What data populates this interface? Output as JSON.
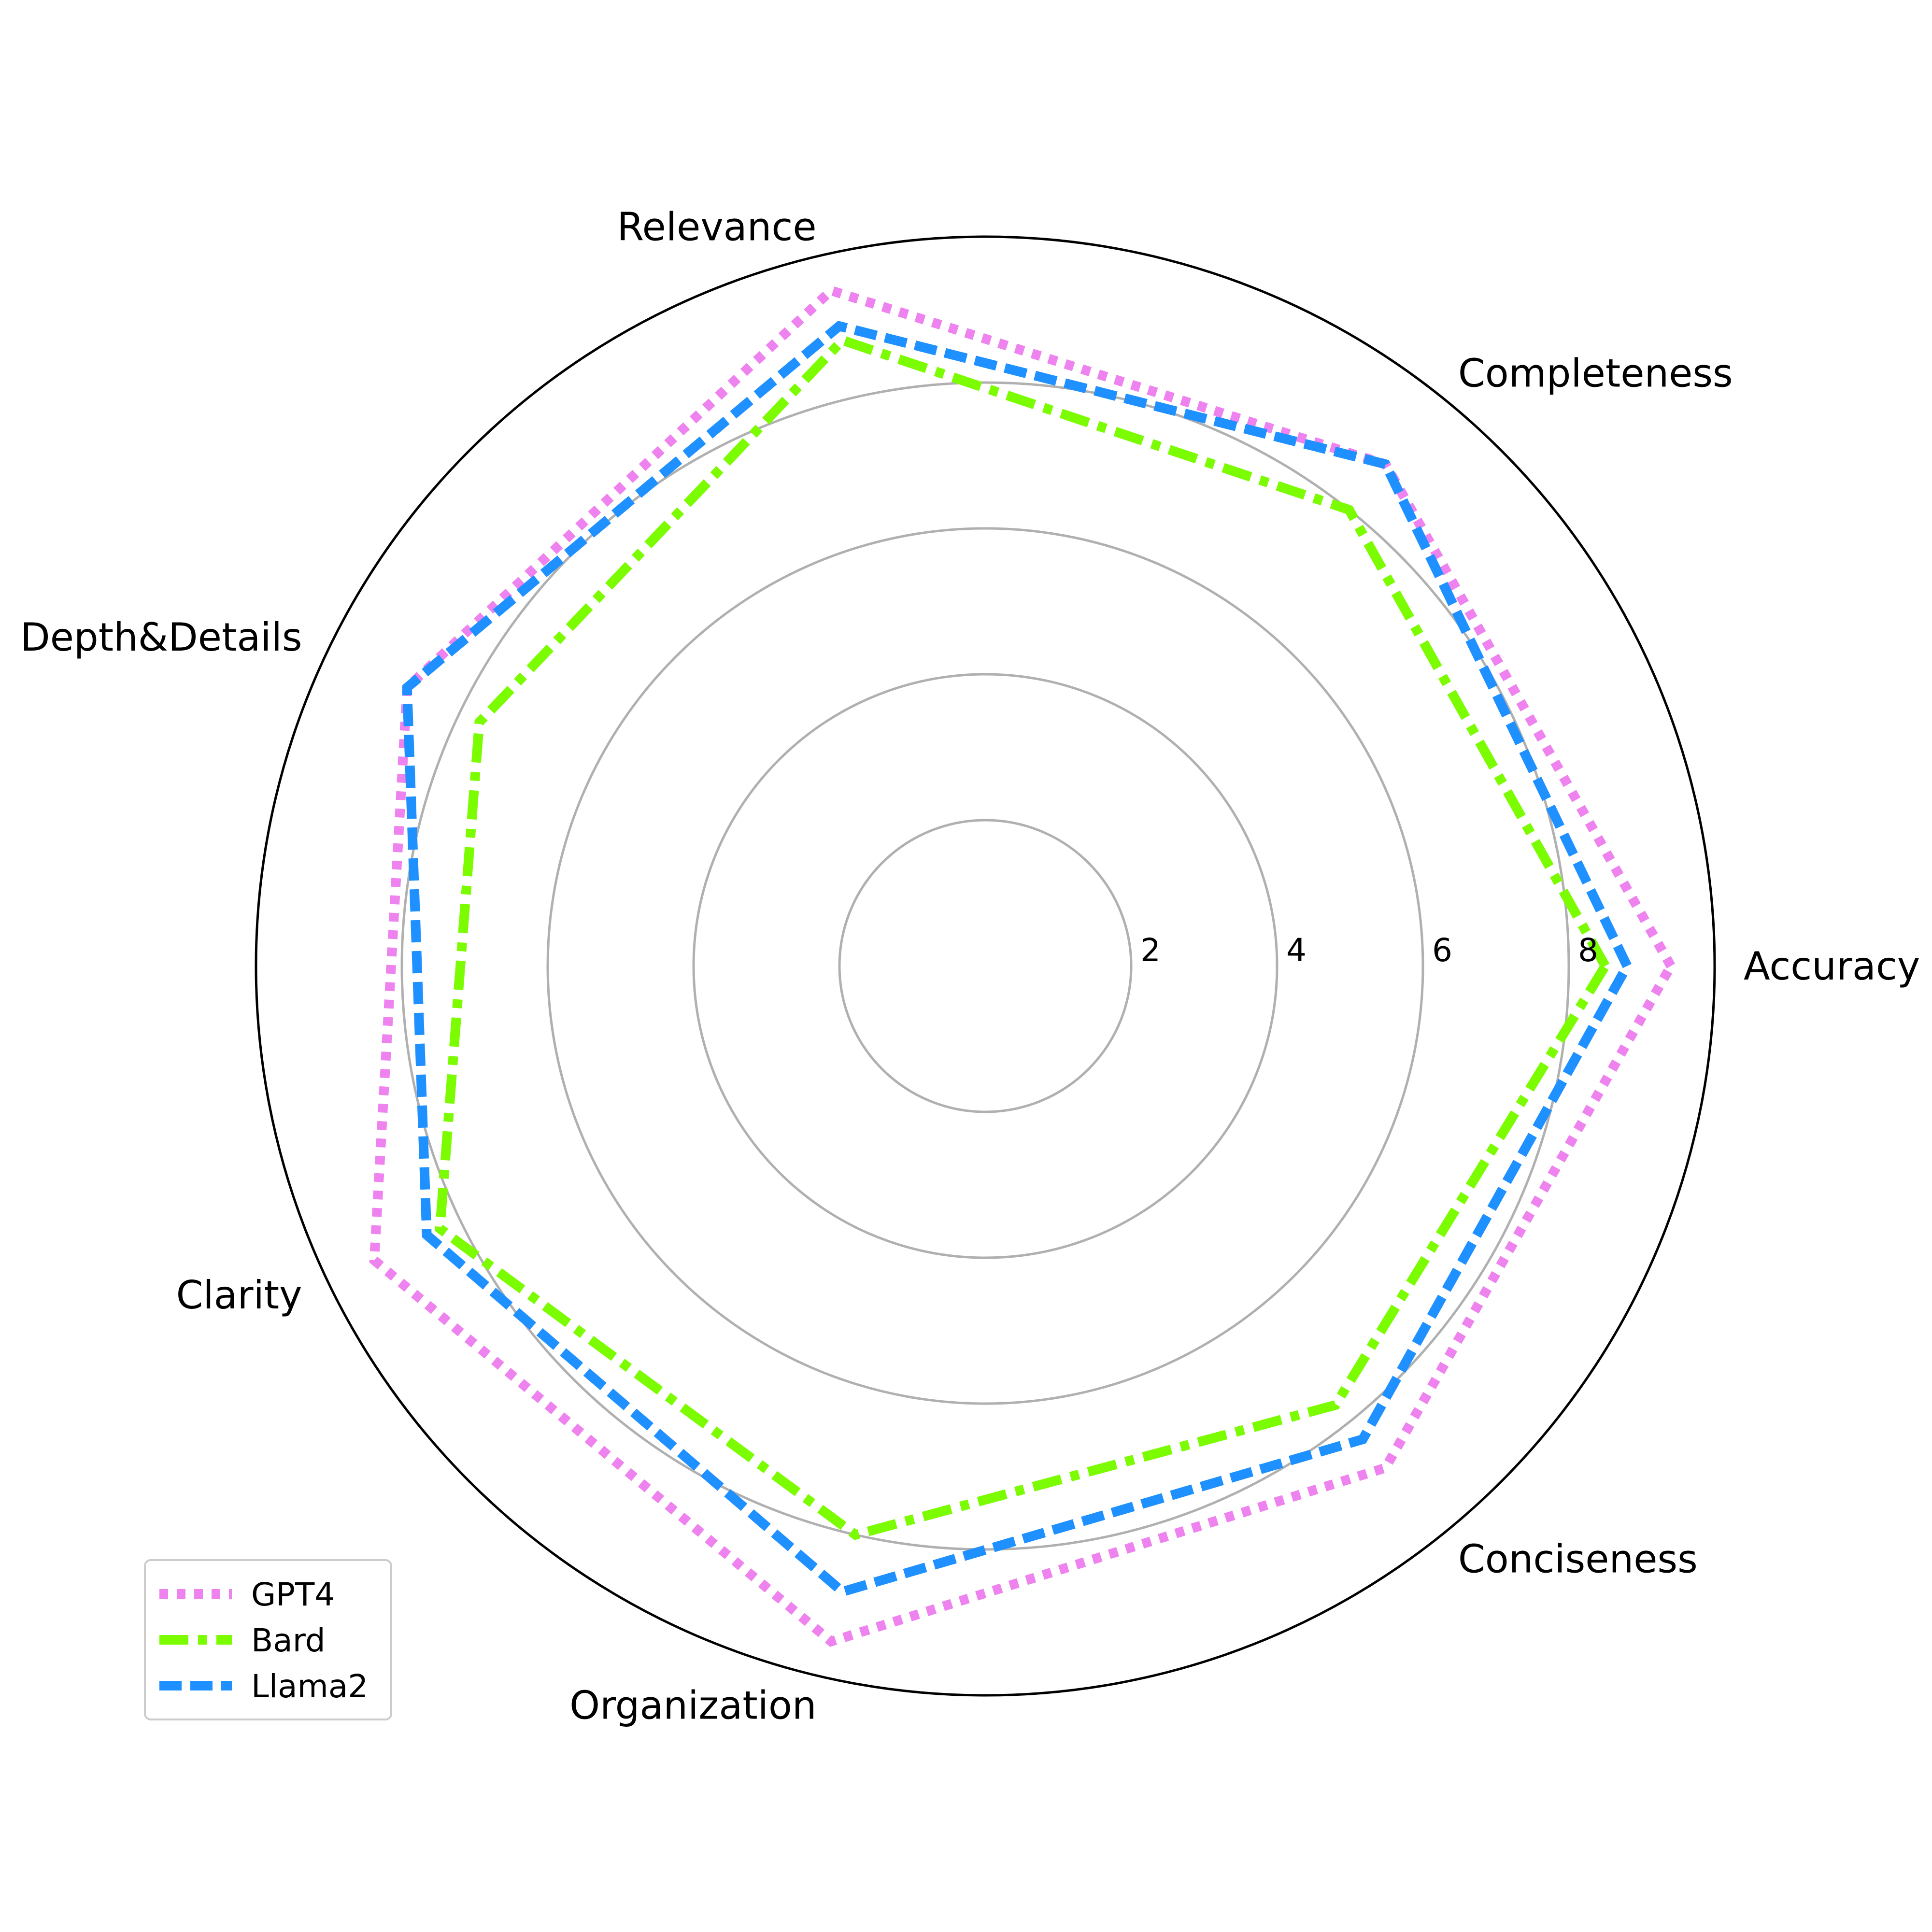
{
  "chart_data": {
    "type": "radar",
    "title": "",
    "categories": [
      "Accuracy",
      "Completeness",
      "Relevance",
      "Depth&Details",
      "Clarity",
      "Organization",
      "Conciseness"
    ],
    "rlim": [
      0,
      10
    ],
    "rticks": [
      2,
      4,
      6,
      8
    ],
    "rtick_labels": [
      "2",
      "4",
      "6",
      "8"
    ],
    "grid": true,
    "legend_position": "lower-left",
    "series": [
      {
        "name": "GPT4",
        "values": [
          9.4,
          8.8,
          9.5,
          8.8,
          9.3,
          9.5,
          8.8
        ],
        "color": "#ee82ee",
        "style": "dotted"
      },
      {
        "name": "Bard",
        "values": [
          8.5,
          8.0,
          8.8,
          7.7,
          8.3,
          8.0,
          7.7
        ],
        "color": "#7cfc00",
        "style": "dashdot"
      },
      {
        "name": "Llama2",
        "values": [
          8.8,
          8.8,
          9.0,
          8.8,
          8.5,
          8.8,
          8.3
        ],
        "color": "#1e90ff",
        "style": "dashed"
      }
    ]
  }
}
